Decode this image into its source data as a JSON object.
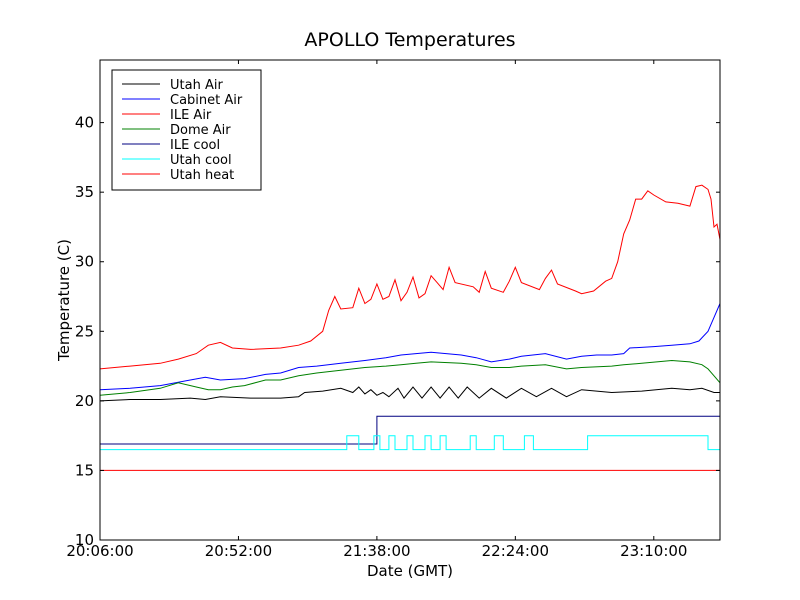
{
  "chart_data": {
    "type": "line",
    "title": "APOLLO Temperatures",
    "xlabel": "Date (GMT)",
    "ylabel": "Temperature (C)",
    "xlim": [
      0,
      206
    ],
    "ylim": [
      10,
      44.5
    ],
    "yticks": [
      10,
      15,
      20,
      25,
      30,
      35,
      40
    ],
    "xticks": [
      {
        "value": 0,
        "label": "20:06:00"
      },
      {
        "value": 46,
        "label": "20:52:00"
      },
      {
        "value": 92,
        "label": "21:38:00"
      },
      {
        "value": 138,
        "label": "22:24:00"
      },
      {
        "value": 184,
        "label": "23:10:00"
      }
    ],
    "x_units": "minutes since 20:06:00",
    "legend_position": "upper-left",
    "series": [
      {
        "name": "Utah Air",
        "color": "#000000",
        "points": [
          [
            0,
            20.0
          ],
          [
            10,
            20.1
          ],
          [
            20,
            20.1
          ],
          [
            30,
            20.2
          ],
          [
            35,
            20.1
          ],
          [
            40,
            20.3
          ],
          [
            50,
            20.2
          ],
          [
            60,
            20.2
          ],
          [
            66,
            20.3
          ],
          [
            68,
            20.6
          ],
          [
            74,
            20.7
          ],
          [
            80,
            20.9
          ],
          [
            84,
            20.6
          ],
          [
            86,
            21.0
          ],
          [
            88,
            20.5
          ],
          [
            90,
            20.8
          ],
          [
            92,
            20.4
          ],
          [
            94,
            20.6
          ],
          [
            96,
            20.3
          ],
          [
            99,
            20.9
          ],
          [
            101,
            20.2
          ],
          [
            104,
            21.0
          ],
          [
            107,
            20.2
          ],
          [
            110,
            21.0
          ],
          [
            113,
            20.2
          ],
          [
            116,
            21.0
          ],
          [
            119,
            20.2
          ],
          [
            122,
            21.0
          ],
          [
            126,
            20.2
          ],
          [
            130,
            20.9
          ],
          [
            135,
            20.2
          ],
          [
            140,
            20.9
          ],
          [
            145,
            20.3
          ],
          [
            150,
            20.9
          ],
          [
            155,
            20.3
          ],
          [
            160,
            20.8
          ],
          [
            170,
            20.6
          ],
          [
            180,
            20.7
          ],
          [
            190,
            20.9
          ],
          [
            196,
            20.8
          ],
          [
            200,
            20.9
          ],
          [
            204,
            20.6
          ],
          [
            206,
            20.6
          ]
        ]
      },
      {
        "name": "Cabinet Air",
        "color": "#0000ff",
        "points": [
          [
            0,
            20.8
          ],
          [
            10,
            20.9
          ],
          [
            20,
            21.1
          ],
          [
            30,
            21.5
          ],
          [
            35,
            21.7
          ],
          [
            40,
            21.5
          ],
          [
            48,
            21.6
          ],
          [
            55,
            21.9
          ],
          [
            60,
            22.0
          ],
          [
            66,
            22.4
          ],
          [
            72,
            22.5
          ],
          [
            80,
            22.7
          ],
          [
            88,
            22.9
          ],
          [
            95,
            23.1
          ],
          [
            100,
            23.3
          ],
          [
            105,
            23.4
          ],
          [
            110,
            23.5
          ],
          [
            120,
            23.3
          ],
          [
            125,
            23.1
          ],
          [
            130,
            22.8
          ],
          [
            136,
            23.0
          ],
          [
            140,
            23.2
          ],
          [
            148,
            23.4
          ],
          [
            155,
            23.0
          ],
          [
            160,
            23.2
          ],
          [
            165,
            23.3
          ],
          [
            170,
            23.3
          ],
          [
            174,
            23.4
          ],
          [
            176,
            23.8
          ],
          [
            184,
            23.9
          ],
          [
            190,
            24.0
          ],
          [
            196,
            24.1
          ],
          [
            199,
            24.3
          ],
          [
            202,
            25.0
          ],
          [
            204,
            26.0
          ],
          [
            206,
            27.0
          ]
        ]
      },
      {
        "name": "ILE Air",
        "color": "#ff0000",
        "points": [
          [
            0,
            22.3
          ],
          [
            10,
            22.5
          ],
          [
            20,
            22.7
          ],
          [
            26,
            23.0
          ],
          [
            32,
            23.4
          ],
          [
            36,
            24.0
          ],
          [
            40,
            24.2
          ],
          [
            44,
            23.8
          ],
          [
            50,
            23.7
          ],
          [
            60,
            23.8
          ],
          [
            66,
            24.0
          ],
          [
            70,
            24.3
          ],
          [
            74,
            25.0
          ],
          [
            76,
            26.5
          ],
          [
            78,
            27.5
          ],
          [
            80,
            26.6
          ],
          [
            84,
            26.7
          ],
          [
            86,
            28.1
          ],
          [
            88,
            27.0
          ],
          [
            90,
            27.3
          ],
          [
            92,
            28.4
          ],
          [
            94,
            27.3
          ],
          [
            96,
            27.5
          ],
          [
            98,
            28.7
          ],
          [
            100,
            27.2
          ],
          [
            102,
            27.8
          ],
          [
            104,
            28.9
          ],
          [
            106,
            27.4
          ],
          [
            108,
            27.7
          ],
          [
            110,
            29.0
          ],
          [
            112,
            28.5
          ],
          [
            114,
            28.0
          ],
          [
            116,
            29.6
          ],
          [
            118,
            28.5
          ],
          [
            124,
            28.2
          ],
          [
            126,
            27.8
          ],
          [
            128,
            29.3
          ],
          [
            130,
            28.1
          ],
          [
            134,
            27.8
          ],
          [
            136,
            28.6
          ],
          [
            138,
            29.6
          ],
          [
            140,
            28.5
          ],
          [
            146,
            28.0
          ],
          [
            148,
            28.8
          ],
          [
            150,
            29.4
          ],
          [
            152,
            28.4
          ],
          [
            158,
            27.9
          ],
          [
            160,
            27.7
          ],
          [
            164,
            27.9
          ],
          [
            168,
            28.6
          ],
          [
            170,
            28.8
          ],
          [
            172,
            30.0
          ],
          [
            174,
            32.0
          ],
          [
            176,
            33.0
          ],
          [
            178,
            34.5
          ],
          [
            180,
            34.5
          ],
          [
            182,
            35.1
          ],
          [
            184,
            34.8
          ],
          [
            188,
            34.3
          ],
          [
            192,
            34.2
          ],
          [
            196,
            34.0
          ],
          [
            198,
            35.4
          ],
          [
            200,
            35.5
          ],
          [
            202,
            35.2
          ],
          [
            203,
            34.5
          ],
          [
            204,
            32.5
          ],
          [
            205,
            32.7
          ],
          [
            206,
            31.6
          ]
        ]
      },
      {
        "name": "Dome Air",
        "color": "#008000",
        "points": [
          [
            0,
            20.4
          ],
          [
            10,
            20.6
          ],
          [
            20,
            20.9
          ],
          [
            26,
            21.3
          ],
          [
            32,
            21.0
          ],
          [
            36,
            20.8
          ],
          [
            40,
            20.8
          ],
          [
            44,
            21.0
          ],
          [
            48,
            21.1
          ],
          [
            55,
            21.5
          ],
          [
            60,
            21.5
          ],
          [
            66,
            21.8
          ],
          [
            72,
            22.0
          ],
          [
            80,
            22.2
          ],
          [
            88,
            22.4
          ],
          [
            95,
            22.5
          ],
          [
            100,
            22.6
          ],
          [
            105,
            22.7
          ],
          [
            110,
            22.8
          ],
          [
            120,
            22.7
          ],
          [
            125,
            22.6
          ],
          [
            130,
            22.4
          ],
          [
            136,
            22.4
          ],
          [
            140,
            22.5
          ],
          [
            148,
            22.6
          ],
          [
            155,
            22.3
          ],
          [
            160,
            22.4
          ],
          [
            170,
            22.5
          ],
          [
            174,
            22.6
          ],
          [
            180,
            22.7
          ],
          [
            190,
            22.9
          ],
          [
            196,
            22.8
          ],
          [
            200,
            22.6
          ],
          [
            202,
            22.3
          ],
          [
            204,
            21.8
          ],
          [
            206,
            21.3
          ]
        ]
      },
      {
        "name": "ILE cool",
        "color": "#000080",
        "points": [
          [
            0,
            16.9
          ],
          [
            92,
            16.9
          ],
          [
            92,
            18.9
          ],
          [
            206,
            18.9
          ]
        ]
      },
      {
        "name": "Utah cool",
        "color": "#00ffff",
        "points": [
          [
            0,
            16.5
          ],
          [
            82,
            16.5
          ],
          [
            82,
            17.5
          ],
          [
            86,
            17.5
          ],
          [
            86,
            16.5
          ],
          [
            91,
            16.5
          ],
          [
            91,
            17.5
          ],
          [
            93,
            17.5
          ],
          [
            93,
            16.5
          ],
          [
            96,
            16.5
          ],
          [
            96,
            17.5
          ],
          [
            98,
            17.5
          ],
          [
            98,
            16.5
          ],
          [
            102,
            16.5
          ],
          [
            102,
            17.5
          ],
          [
            104,
            17.5
          ],
          [
            104,
            16.5
          ],
          [
            108,
            16.5
          ],
          [
            108,
            17.5
          ],
          [
            110,
            17.5
          ],
          [
            110,
            16.5
          ],
          [
            113,
            16.5
          ],
          [
            113,
            17.5
          ],
          [
            115,
            17.5
          ],
          [
            115,
            16.5
          ],
          [
            123,
            16.5
          ],
          [
            123,
            17.5
          ],
          [
            125,
            17.5
          ],
          [
            125,
            16.5
          ],
          [
            131,
            16.5
          ],
          [
            131,
            17.5
          ],
          [
            134,
            17.5
          ],
          [
            134,
            16.5
          ],
          [
            141,
            16.5
          ],
          [
            141,
            17.5
          ],
          [
            144,
            17.5
          ],
          [
            144,
            16.5
          ],
          [
            162,
            16.5
          ],
          [
            162,
            17.5
          ],
          [
            202,
            17.5
          ],
          [
            202,
            16.5
          ],
          [
            206,
            16.5
          ]
        ]
      },
      {
        "name": "Utah heat",
        "color": "#ff0000",
        "points": [
          [
            0,
            15.0
          ],
          [
            206,
            15.0
          ]
        ]
      }
    ]
  }
}
